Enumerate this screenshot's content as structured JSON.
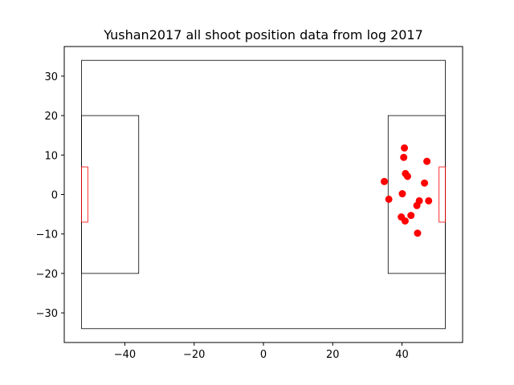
{
  "chart_data": {
    "type": "scatter",
    "title": "Yushan2017 all shoot position  data from log 2017",
    "xlabel": "",
    "ylabel": "",
    "xlim": [
      -57.5,
      57.5
    ],
    "ylim": [
      -37.5,
      37.5
    ],
    "xticks": [
      -40,
      -20,
      0,
      20,
      40
    ],
    "yticks": [
      -30,
      -20,
      -10,
      0,
      10,
      20,
      30
    ],
    "grid": false,
    "point_color": "#ff0000",
    "field_outline_color": "#000000",
    "goal_color": "#ff0000",
    "field": {
      "pitch": {
        "x0": -52.5,
        "x1": 52.5,
        "y0": -34,
        "y1": 34
      },
      "penalty_areas": [
        {
          "x0": -52.5,
          "x1": -36,
          "y0": -20,
          "y1": 20
        },
        {
          "x0": 36,
          "x1": 52.5,
          "y0": -20,
          "y1": 20
        }
      ],
      "goals": [
        {
          "x0": -52.5,
          "x1": -50.7,
          "y0": -7,
          "y1": 7
        },
        {
          "x0": 50.7,
          "x1": 52.5,
          "y0": -7,
          "y1": 7
        }
      ]
    },
    "points": [
      {
        "x": 40.7,
        "y": 11.8
      },
      {
        "x": 40.5,
        "y": 9.4
      },
      {
        "x": 47.2,
        "y": 8.4
      },
      {
        "x": 41.0,
        "y": 5.3
      },
      {
        "x": 41.6,
        "y": 4.6
      },
      {
        "x": 34.9,
        "y": 3.3
      },
      {
        "x": 46.5,
        "y": 2.9
      },
      {
        "x": 40.1,
        "y": 0.2
      },
      {
        "x": 36.2,
        "y": -1.2
      },
      {
        "x": 47.7,
        "y": -1.6
      },
      {
        "x": 45.0,
        "y": -1.6
      },
      {
        "x": 44.3,
        "y": -2.8
      },
      {
        "x": 42.6,
        "y": -5.3
      },
      {
        "x": 39.8,
        "y": -5.7
      },
      {
        "x": 40.9,
        "y": -6.7
      },
      {
        "x": 44.5,
        "y": -9.8
      }
    ]
  }
}
